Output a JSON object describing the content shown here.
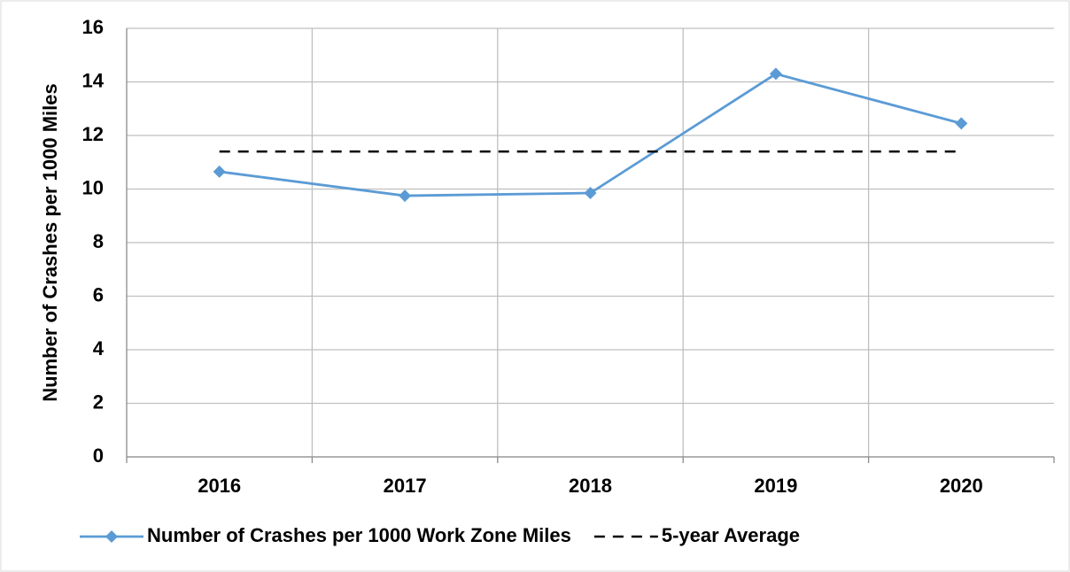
{
  "chart_data": {
    "type": "line",
    "y_label": "Number of Crashes per 1000 Miles",
    "categories": [
      "2016",
      "2017",
      "2018",
      "2019",
      "2020"
    ],
    "series": [
      {
        "name": "Number of Crashes per 1000 Work Zone Miles",
        "color": "#5b9bd5",
        "values": [
          10.65,
          9.75,
          9.85,
          14.3,
          12.45
        ]
      },
      {
        "name": "5-year Average",
        "color": "#000000",
        "dashed": true,
        "values": [
          11.4,
          11.4,
          11.4,
          11.4,
          11.4
        ]
      }
    ],
    "ylim": [
      0,
      16
    ],
    "yticks": [
      0,
      2,
      4,
      6,
      8,
      10,
      12,
      14,
      16
    ],
    "grid": true
  }
}
